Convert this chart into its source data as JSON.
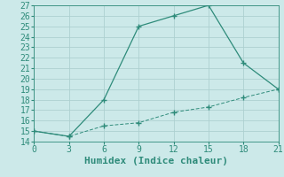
{
  "xlabel": "Humidex (Indice chaleur)",
  "xlim": [
    0,
    21
  ],
  "ylim": [
    14,
    27
  ],
  "xticks": [
    0,
    3,
    6,
    9,
    12,
    15,
    18,
    21
  ],
  "yticks": [
    14,
    15,
    16,
    17,
    18,
    19,
    20,
    21,
    22,
    23,
    24,
    25,
    26,
    27
  ],
  "line1_x": [
    0,
    3,
    6,
    9,
    12,
    15,
    18,
    21
  ],
  "line1_y": [
    15,
    14.5,
    18,
    25,
    26,
    27,
    21.5,
    19
  ],
  "line2_x": [
    0,
    3,
    6,
    9,
    12,
    15,
    18,
    21
  ],
  "line2_y": [
    15,
    14.5,
    15.5,
    15.8,
    16.8,
    17.3,
    18.2,
    19
  ],
  "line_color": "#2e8b7a",
  "bg_color": "#cce9e9",
  "grid_color": "#aed0d0",
  "tick_fontsize": 7,
  "xlabel_fontsize": 8
}
